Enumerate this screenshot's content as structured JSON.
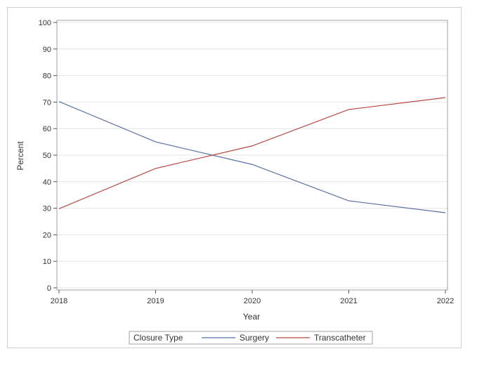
{
  "chart_data": {
    "type": "line",
    "title": "",
    "xlabel": "Year",
    "ylabel": "Percent",
    "categories": [
      "2018",
      "2019",
      "2020",
      "2021",
      "2022"
    ],
    "xlim": [
      2018,
      2022
    ],
    "ylim": [
      0,
      100
    ],
    "yticks": [
      "0",
      "10",
      "20",
      "30",
      "40",
      "50",
      "60",
      "70",
      "80",
      "90",
      "100"
    ],
    "grid": true,
    "legend": {
      "title": "Closure Type",
      "placement": "bottom-center"
    },
    "series": [
      {
        "name": "Surgery",
        "color": "#5b6fa6",
        "values": [
          70.2,
          55.0,
          46.5,
          32.8,
          28.3
        ]
      },
      {
        "name": "Transcatheter",
        "color": "#b5483f",
        "values": [
          29.8,
          45.0,
          53.5,
          67.2,
          71.7
        ]
      }
    ]
  }
}
